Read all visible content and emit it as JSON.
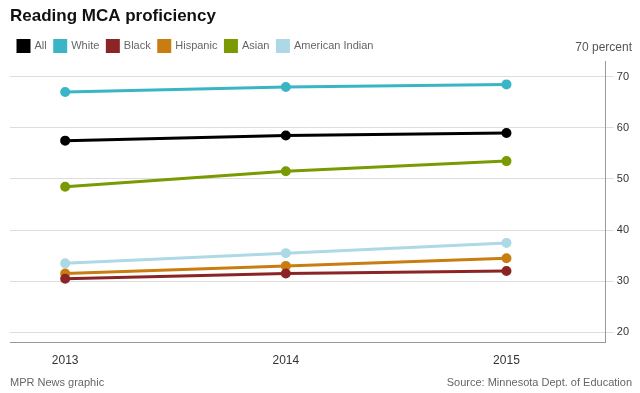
{
  "chart_data": {
    "type": "line",
    "title": "Reading MCA proficiency",
    "ylabel": "70 percent",
    "annotations": [
      "MPR News graphic",
      "Source: Minnesota Dept. of Education"
    ],
    "x": [
      2013,
      2014,
      2015
    ],
    "series": [
      {
        "name": "All",
        "color": "#000000",
        "values": [
          57.5,
          58.5,
          59.0
        ]
      },
      {
        "name": "White",
        "color": "#3ab5c6",
        "values": [
          67.0,
          68.0,
          68.5
        ]
      },
      {
        "name": "Black",
        "color": "#8b2525",
        "values": [
          30.5,
          31.5,
          32.0
        ]
      },
      {
        "name": "Hispanic",
        "color": "#c97d10",
        "values": [
          31.5,
          33.0,
          34.5
        ]
      },
      {
        "name": "Asian",
        "color": "#7a9a01",
        "values": [
          48.5,
          51.5,
          53.5
        ]
      },
      {
        "name": "American Indian",
        "color": "#add8e6",
        "values": [
          33.5,
          35.5,
          37.5
        ]
      }
    ],
    "xlim": [
      2012.75,
      2015.45
    ],
    "xticks": [
      2013,
      2014,
      2015
    ],
    "ylim": [
      18,
      73
    ],
    "yticks": [
      20,
      30,
      40,
      50,
      60,
      70
    ],
    "grid": "y",
    "legend": "upper left",
    "marker": "o"
  }
}
